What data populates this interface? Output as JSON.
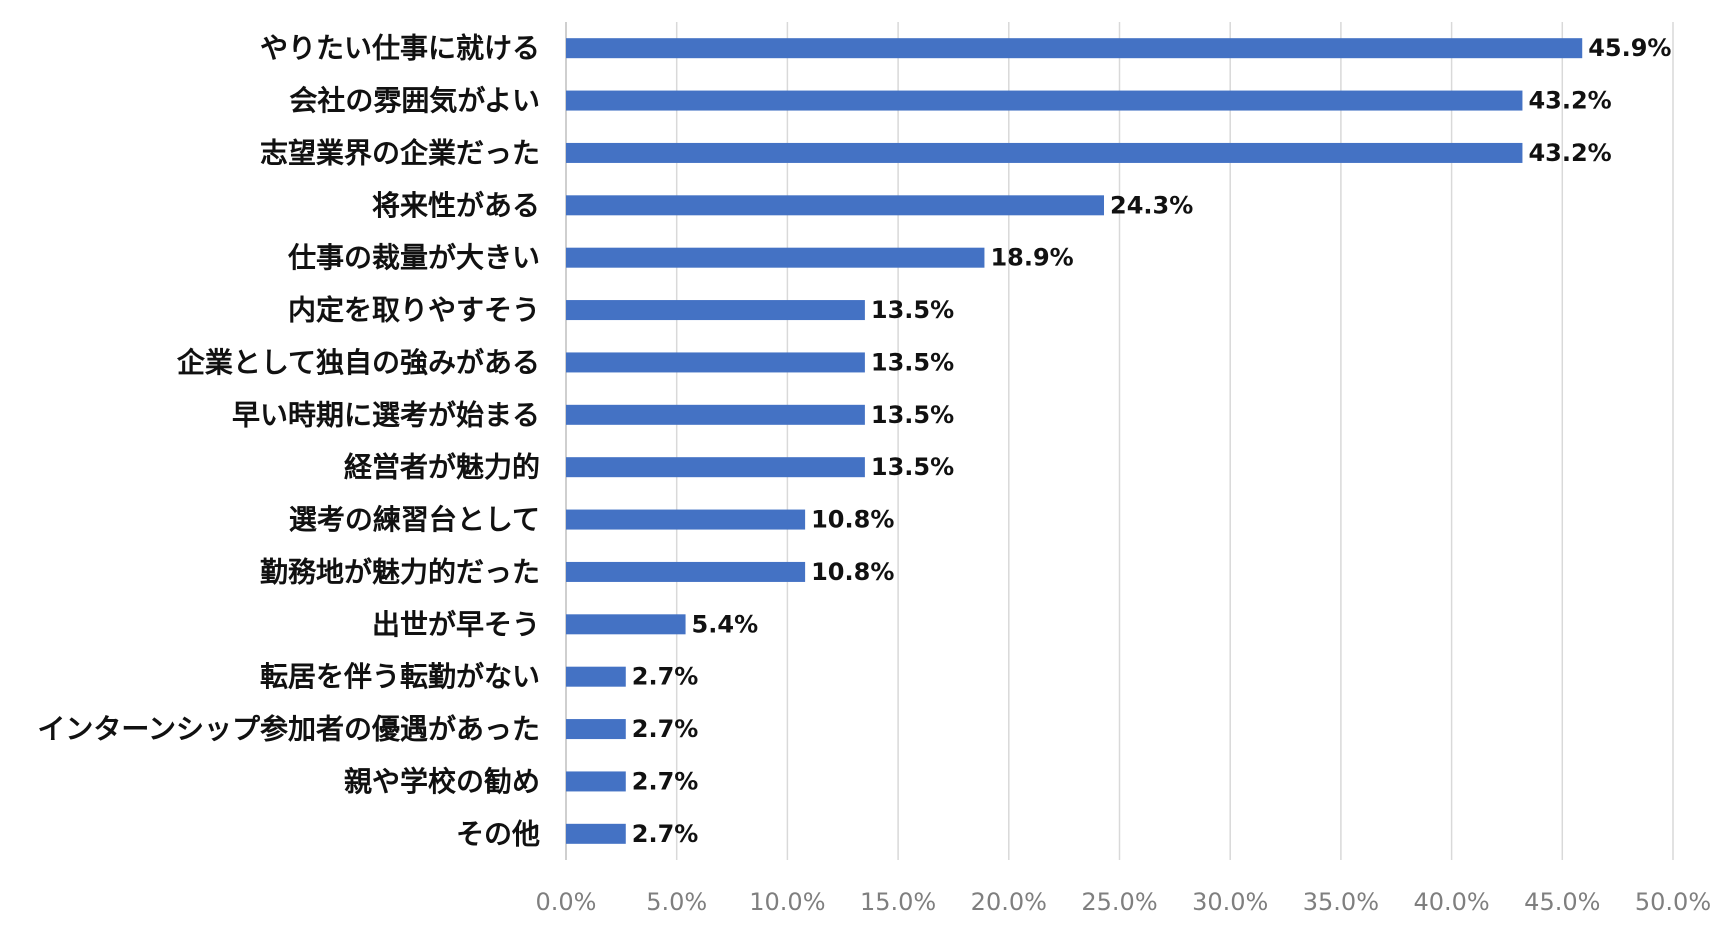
{
  "chart_data": {
    "type": "bar",
    "orientation": "horizontal",
    "title": "",
    "xlabel": "",
    "ylabel": "",
    "categories": [
      "やりたい仕事に就ける",
      "会社の雰囲気がよい",
      "志望業界の企業だった",
      "将来性がある",
      "仕事の裁量が大きい",
      "内定を取りやすそう",
      "企業として独自の強みがある",
      "早い時期に選考が始まる",
      "経営者が魅力的",
      "選考の練習台として",
      "勤務地が魅力的だった",
      "出世が早そう",
      "転居を伴う転勤がない",
      "インターンシップ参加者の優遇があった",
      "親や学校の勧め",
      "その他"
    ],
    "values": [
      45.9,
      43.2,
      43.2,
      24.3,
      18.9,
      13.5,
      13.5,
      13.5,
      13.5,
      10.8,
      10.8,
      5.4,
      2.7,
      2.7,
      2.7,
      2.7
    ],
    "value_labels": [
      "45.9%",
      "43.2%",
      "43.2%",
      "24.3%",
      "18.9%",
      "13.5%",
      "13.5%",
      "13.5%",
      "13.5%",
      "10.8%",
      "10.8%",
      "5.4%",
      "2.7%",
      "2.7%",
      "2.7%",
      "2.7%"
    ],
    "xlim": [
      0,
      50
    ],
    "x_ticks": [
      "0.0%",
      "5.0%",
      "10.0%",
      "15.0%",
      "20.0%",
      "25.0%",
      "30.0%",
      "35.0%",
      "40.0%",
      "45.0%",
      "50.0%"
    ],
    "grid": true,
    "legend": "none",
    "bar_color": "#4472C4"
  }
}
